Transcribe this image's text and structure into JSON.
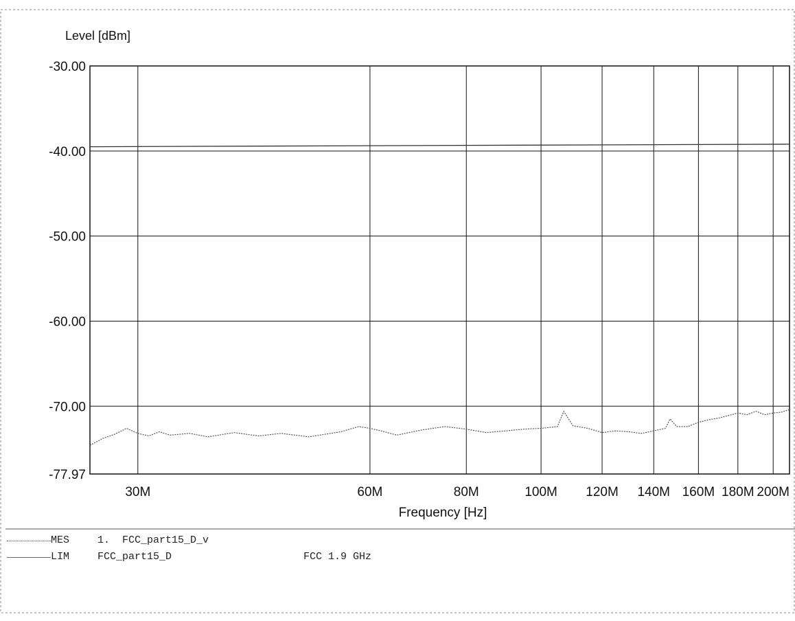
{
  "chart_data": {
    "type": "line",
    "ylabel": "Level [dBm]",
    "xlabel": "Frequency [Hz]",
    "ylim": [
      -77.97,
      -30.0
    ],
    "xlim": [
      26,
      210
    ],
    "x_scale": "log",
    "y_tick_labels": [
      "-30.00",
      "-40.00",
      "-50.00",
      "-60.00",
      "-70.00",
      "-77.97"
    ],
    "y_ticks": [
      -30.0,
      -40.0,
      -50.0,
      -60.0,
      -70.0,
      -77.97
    ],
    "x_tick_labels": [
      "30M",
      "60M",
      "80M",
      "100M",
      "120M",
      "140M",
      "160M",
      "180M",
      "200M"
    ],
    "x_ticks": [
      30,
      60,
      80,
      100,
      120,
      140,
      160,
      180,
      200
    ],
    "grid": true,
    "series": [
      {
        "name": "MES",
        "style": "dotted",
        "x": [
          26,
          27,
          28,
          29,
          30,
          31,
          32,
          33,
          35,
          37,
          40,
          43,
          46,
          50,
          55,
          58,
          60,
          62,
          65,
          70,
          75,
          80,
          85,
          90,
          95,
          100,
          105,
          107,
          110,
          115,
          120,
          125,
          130,
          135,
          140,
          145,
          147,
          150,
          155,
          160,
          165,
          170,
          175,
          180,
          185,
          190,
          195,
          200,
          205,
          210
        ],
        "values": [
          -74.6,
          -73.8,
          -73.3,
          -72.6,
          -73.2,
          -73.5,
          -73.0,
          -73.4,
          -73.2,
          -73.6,
          -73.1,
          -73.5,
          -73.2,
          -73.6,
          -73.0,
          -72.4,
          -72.6,
          -72.9,
          -73.4,
          -72.8,
          -72.4,
          -72.7,
          -73.1,
          -72.9,
          -72.7,
          -72.6,
          -72.4,
          -70.6,
          -72.3,
          -72.6,
          -73.1,
          -72.9,
          -73.0,
          -73.2,
          -72.9,
          -72.6,
          -71.5,
          -72.4,
          -72.4,
          -71.9,
          -71.6,
          -71.4,
          -71.1,
          -70.8,
          -71.0,
          -70.6,
          -71.0,
          -70.8,
          -70.7,
          -70.4
        ]
      },
      {
        "name": "LIM",
        "style": "solid",
        "x": [
          26,
          210
        ],
        "values": [
          -39.5,
          -39.2
        ]
      }
    ]
  },
  "legend": {
    "mes_code": "MES",
    "mes_name": "1.  FCC_part15_D_v",
    "lim_code": "LIM",
    "lim_name": "FCC_part15_D",
    "lim_extra": "FCC 1.9 GHz"
  }
}
